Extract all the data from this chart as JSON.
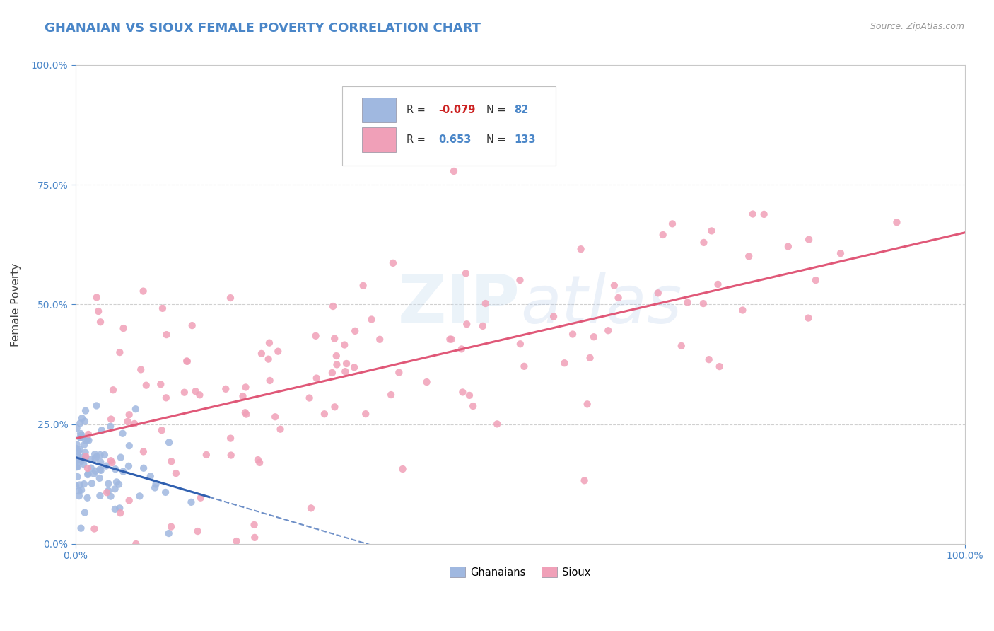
{
  "title": "GHANAIAN VS SIOUX FEMALE POVERTY CORRELATION CHART",
  "source": "Source: ZipAtlas.com",
  "ylabel": "Female Poverty",
  "xlim": [
    0.0,
    1.0
  ],
  "ylim": [
    0.0,
    1.0
  ],
  "title_color": "#4a86c8",
  "title_fontsize": 13,
  "background_color": "#ffffff",
  "legend_R1": "-0.079",
  "legend_N1": "82",
  "legend_R2": "0.653",
  "legend_N2": "133",
  "ghanaian_color": "#a0b8e0",
  "sioux_color": "#f0a0b8",
  "ghanaian_trend_color": "#3060b0",
  "sioux_trend_color": "#e05878",
  "grid_color": "#d0d0d0",
  "marker_size": 55,
  "ghanaian_seed": 42,
  "sioux_seed": 99,
  "N_g": 82,
  "N_s": 133,
  "sioux_line_x0": 0.0,
  "sioux_line_y0": 0.22,
  "sioux_line_x1": 1.0,
  "sioux_line_y1": 0.65,
  "ghanaian_line_solid_x0": 0.0,
  "ghanaian_line_solid_x1": 0.15,
  "ghanaian_line_dash_x1": 1.0
}
